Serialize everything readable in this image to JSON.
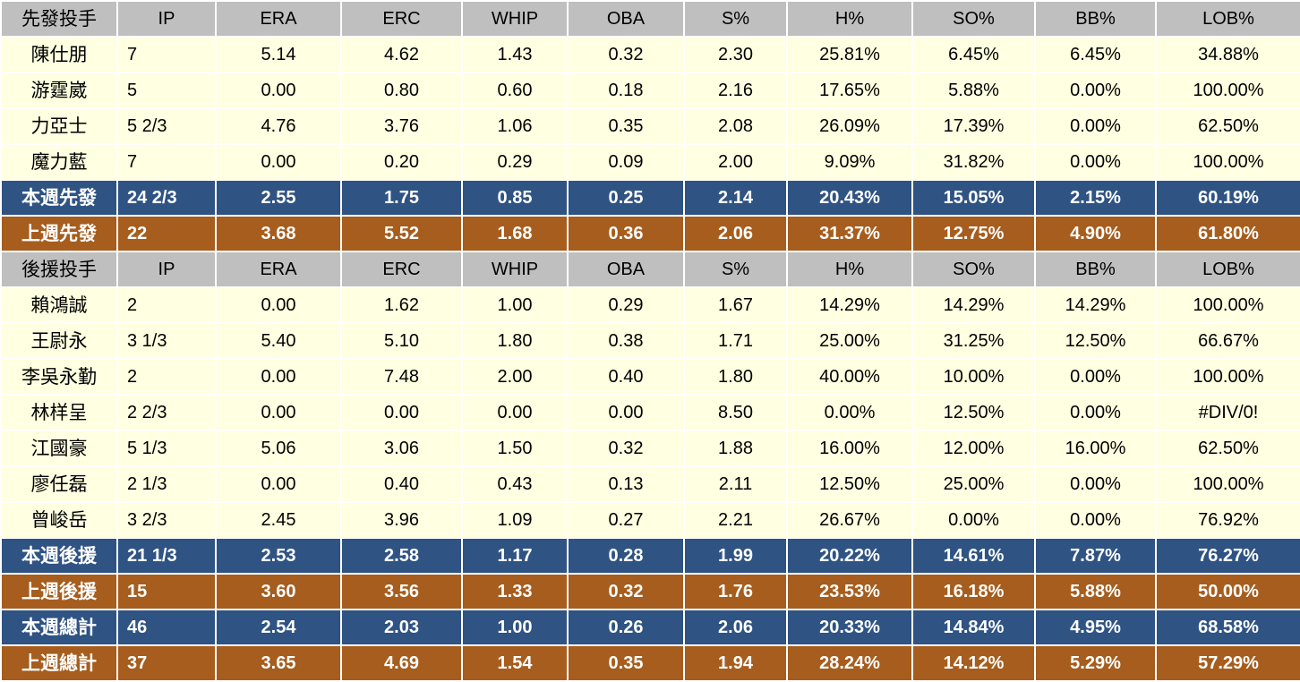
{
  "colors": {
    "header_bg": "#BFBFBF",
    "data_row_bg": "#FFFFE1",
    "this_week_bg": "#2F5383",
    "last_week_bg": "#A65D1D",
    "gridline": "#FFFFFF",
    "text": "#000000",
    "summary_text": "#FFFFFF"
  },
  "sections": [
    {
      "title": "先發投手",
      "stat_headers": [
        "IP",
        "ERA",
        "ERC",
        "WHIP",
        "OBA",
        "S%",
        "H%",
        "SO%",
        "BB%",
        "LOB%"
      ],
      "pitchers": [
        {
          "name": "陳仕朋",
          "stats": [
            "7",
            "5.14",
            "4.62",
            "1.43",
            "0.32",
            "2.30",
            "25.81%",
            "6.45%",
            "6.45%",
            "34.88%"
          ]
        },
        {
          "name": "游霆崴",
          "stats": [
            "5",
            "0.00",
            "0.80",
            "0.60",
            "0.18",
            "2.16",
            "17.65%",
            "5.88%",
            "0.00%",
            "100.00%"
          ]
        },
        {
          "name": "力亞士",
          "stats": [
            "5 2/3",
            "4.76",
            "3.76",
            "1.06",
            "0.35",
            "2.08",
            "26.09%",
            "17.39%",
            "0.00%",
            "62.50%"
          ]
        },
        {
          "name": "魔力藍",
          "stats": [
            "7",
            "0.00",
            "0.20",
            "0.29",
            "0.09",
            "2.00",
            "9.09%",
            "31.82%",
            "0.00%",
            "100.00%"
          ]
        }
      ],
      "summary": [
        {
          "label": "本週先發",
          "style": "this-week",
          "stats": [
            "24 2/3",
            "2.55",
            "1.75",
            "0.85",
            "0.25",
            "2.14",
            "20.43%",
            "15.05%",
            "2.15%",
            "60.19%"
          ]
        },
        {
          "label": "上週先發",
          "style": "last-week",
          "stats": [
            "22",
            "3.68",
            "5.52",
            "1.68",
            "0.36",
            "2.06",
            "31.37%",
            "12.75%",
            "4.90%",
            "61.80%"
          ]
        }
      ]
    },
    {
      "title": "後援投手",
      "stat_headers": [
        "IP",
        "ERA",
        "ERC",
        "WHIP",
        "OBA",
        "S%",
        "H%",
        "SO%",
        "BB%",
        "LOB%"
      ],
      "pitchers": [
        {
          "name": "賴鴻誠",
          "stats": [
            "2",
            "0.00",
            "1.62",
            "1.00",
            "0.29",
            "1.67",
            "14.29%",
            "14.29%",
            "14.29%",
            "100.00%"
          ]
        },
        {
          "name": "王尉永",
          "stats": [
            "3 1/3",
            "5.40",
            "5.10",
            "1.80",
            "0.38",
            "1.71",
            "25.00%",
            "31.25%",
            "12.50%",
            "66.67%"
          ]
        },
        {
          "name": "李吳永勤",
          "stats": [
            "2",
            "0.00",
            "7.48",
            "2.00",
            "0.40",
            "1.80",
            "40.00%",
            "10.00%",
            "0.00%",
            "100.00%"
          ]
        },
        {
          "name": "林样呈",
          "stats": [
            "2 2/3",
            "0.00",
            "0.00",
            "0.00",
            "0.00",
            "8.50",
            "0.00%",
            "12.50%",
            "0.00%",
            "#DIV/0!"
          ]
        },
        {
          "name": "江國豪",
          "stats": [
            "5 1/3",
            "5.06",
            "3.06",
            "1.50",
            "0.32",
            "1.88",
            "16.00%",
            "12.00%",
            "16.00%",
            "62.50%"
          ]
        },
        {
          "name": "廖任磊",
          "stats": [
            "2 1/3",
            "0.00",
            "0.40",
            "0.43",
            "0.13",
            "2.11",
            "12.50%",
            "25.00%",
            "0.00%",
            "100.00%"
          ]
        },
        {
          "name": "曾峻岳",
          "stats": [
            "3 2/3",
            "2.45",
            "3.96",
            "1.09",
            "0.27",
            "2.21",
            "26.67%",
            "0.00%",
            "0.00%",
            "76.92%"
          ]
        }
      ],
      "summary": [
        {
          "label": "本週後援",
          "style": "this-week",
          "stats": [
            "21 1/3",
            "2.53",
            "2.58",
            "1.17",
            "0.28",
            "1.99",
            "20.22%",
            "14.61%",
            "7.87%",
            "76.27%"
          ]
        },
        {
          "label": "上週後援",
          "style": "last-week",
          "stats": [
            "15",
            "3.60",
            "3.56",
            "1.33",
            "0.32",
            "1.76",
            "23.53%",
            "16.18%",
            "5.88%",
            "50.00%"
          ]
        }
      ]
    }
  ],
  "totals": [
    {
      "label": "本週總計",
      "style": "this-week",
      "stats": [
        "46",
        "2.54",
        "2.03",
        "1.00",
        "0.26",
        "2.06",
        "20.33%",
        "14.84%",
        "4.95%",
        "68.58%"
      ]
    },
    {
      "label": "上週總計",
      "style": "last-week",
      "stats": [
        "37",
        "3.65",
        "4.69",
        "1.54",
        "0.35",
        "1.94",
        "28.24%",
        "14.12%",
        "5.29%",
        "57.29%"
      ]
    }
  ]
}
